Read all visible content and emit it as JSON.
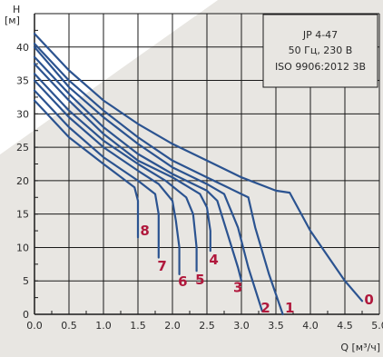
{
  "chart_data": {
    "type": "line",
    "title": "",
    "xlabel": "Q [м³/ч]",
    "ylabel": "H",
    "yunit": "[м]",
    "xlim": [
      0,
      5
    ],
    "ylim": [
      0,
      45
    ],
    "x_ticks": [
      "0.0",
      "0.5",
      "1.0",
      "1.5",
      "2.0",
      "2.5",
      "3.0",
      "3.5",
      "4.0",
      "4.5",
      "5.0"
    ],
    "y_ticks": [
      "0",
      "5",
      "10",
      "15",
      "20",
      "25",
      "30",
      "35",
      "40"
    ],
    "grid": true,
    "info_box": [
      "JP 4-47",
      "50 Гц, 230 В",
      "ISO 9906:2012 3B"
    ],
    "colors": {
      "curve": "#2b5390",
      "label": "#b0183c",
      "grid": "#1a1a1a",
      "background_band": "#e8e6e2"
    },
    "series": [
      {
        "name": "0",
        "points": [
          [
            0,
            42
          ],
          [
            0.5,
            36.5
          ],
          [
            1.0,
            32
          ],
          [
            1.5,
            28.5
          ],
          [
            2.0,
            25.5
          ],
          [
            2.5,
            23
          ],
          [
            3.0,
            20.5
          ],
          [
            3.5,
            18.5
          ],
          [
            3.7,
            18.2
          ],
          [
            4.0,
            12.5
          ],
          [
            4.5,
            5
          ],
          [
            4.75,
            2
          ]
        ]
      },
      {
        "name": "1",
        "points": [
          [
            0,
            40.5
          ],
          [
            0.5,
            35
          ],
          [
            1.0,
            30.5
          ],
          [
            1.5,
            26.5
          ],
          [
            2.0,
            23
          ],
          [
            2.5,
            20.5
          ],
          [
            3.0,
            18
          ],
          [
            3.1,
            17.5
          ],
          [
            3.2,
            13
          ],
          [
            3.4,
            6
          ],
          [
            3.6,
            0
          ]
        ]
      },
      {
        "name": "2",
        "points": [
          [
            0,
            40
          ],
          [
            0.5,
            34
          ],
          [
            1.0,
            29.5
          ],
          [
            1.5,
            25.5
          ],
          [
            2.0,
            22
          ],
          [
            2.5,
            19.5
          ],
          [
            2.75,
            18
          ],
          [
            2.95,
            13
          ],
          [
            3.1,
            7
          ],
          [
            3.3,
            0.5
          ]
        ]
      },
      {
        "name": "3",
        "points": [
          [
            0,
            38.5
          ],
          [
            0.5,
            33
          ],
          [
            1.0,
            28
          ],
          [
            1.5,
            24
          ],
          [
            2.0,
            21
          ],
          [
            2.5,
            18.5
          ],
          [
            2.65,
            17
          ],
          [
            2.8,
            12
          ],
          [
            2.95,
            7
          ],
          [
            3.0,
            5
          ]
        ]
      },
      {
        "name": "4",
        "points": [
          [
            0,
            37.5
          ],
          [
            0.5,
            32
          ],
          [
            1.0,
            27
          ],
          [
            1.5,
            23
          ],
          [
            2.0,
            20.5
          ],
          [
            2.4,
            18
          ],
          [
            2.5,
            16
          ],
          [
            2.55,
            12.5
          ],
          [
            2.55,
            9.5
          ]
        ]
      },
      {
        "name": "5",
        "points": [
          [
            0,
            36
          ],
          [
            0.5,
            30.5
          ],
          [
            1.0,
            26
          ],
          [
            1.5,
            22.5
          ],
          [
            1.9,
            20
          ],
          [
            2.2,
            17.5
          ],
          [
            2.3,
            15
          ],
          [
            2.35,
            10
          ],
          [
            2.35,
            6.5
          ]
        ]
      },
      {
        "name": "6",
        "points": [
          [
            0,
            35
          ],
          [
            0.5,
            29.5
          ],
          [
            1.0,
            25
          ],
          [
            1.5,
            21.5
          ],
          [
            1.8,
            19.5
          ],
          [
            2.0,
            17
          ],
          [
            2.05,
            14
          ],
          [
            2.1,
            10
          ],
          [
            2.1,
            6
          ]
        ]
      },
      {
        "name": "7",
        "points": [
          [
            0,
            33.5
          ],
          [
            0.5,
            28
          ],
          [
            1.0,
            23.5
          ],
          [
            1.5,
            20
          ],
          [
            1.75,
            18
          ],
          [
            1.8,
            15
          ],
          [
            1.8,
            12
          ],
          [
            1.8,
            8.5
          ]
        ]
      },
      {
        "name": "8",
        "points": [
          [
            0,
            32
          ],
          [
            0.5,
            26.5
          ],
          [
            1.0,
            22.5
          ],
          [
            1.45,
            19
          ],
          [
            1.5,
            17
          ],
          [
            1.5,
            13
          ],
          [
            1.5,
            11.5
          ]
        ]
      }
    ],
    "label_anchors": [
      {
        "text": "0",
        "x": 4.85,
        "y": 1.5
      },
      {
        "text": "1",
        "x": 3.7,
        "y": 0.3
      },
      {
        "text": "2",
        "x": 3.35,
        "y": 0.3
      },
      {
        "text": "3",
        "x": 2.95,
        "y": 3.3
      },
      {
        "text": "4",
        "x": 2.6,
        "y": 7.5
      },
      {
        "text": "5",
        "x": 2.4,
        "y": 4.5
      },
      {
        "text": "6",
        "x": 2.15,
        "y": 4.2
      },
      {
        "text": "7",
        "x": 1.85,
        "y": 6.5
      },
      {
        "text": "8",
        "x": 1.6,
        "y": 11.8
      }
    ]
  }
}
